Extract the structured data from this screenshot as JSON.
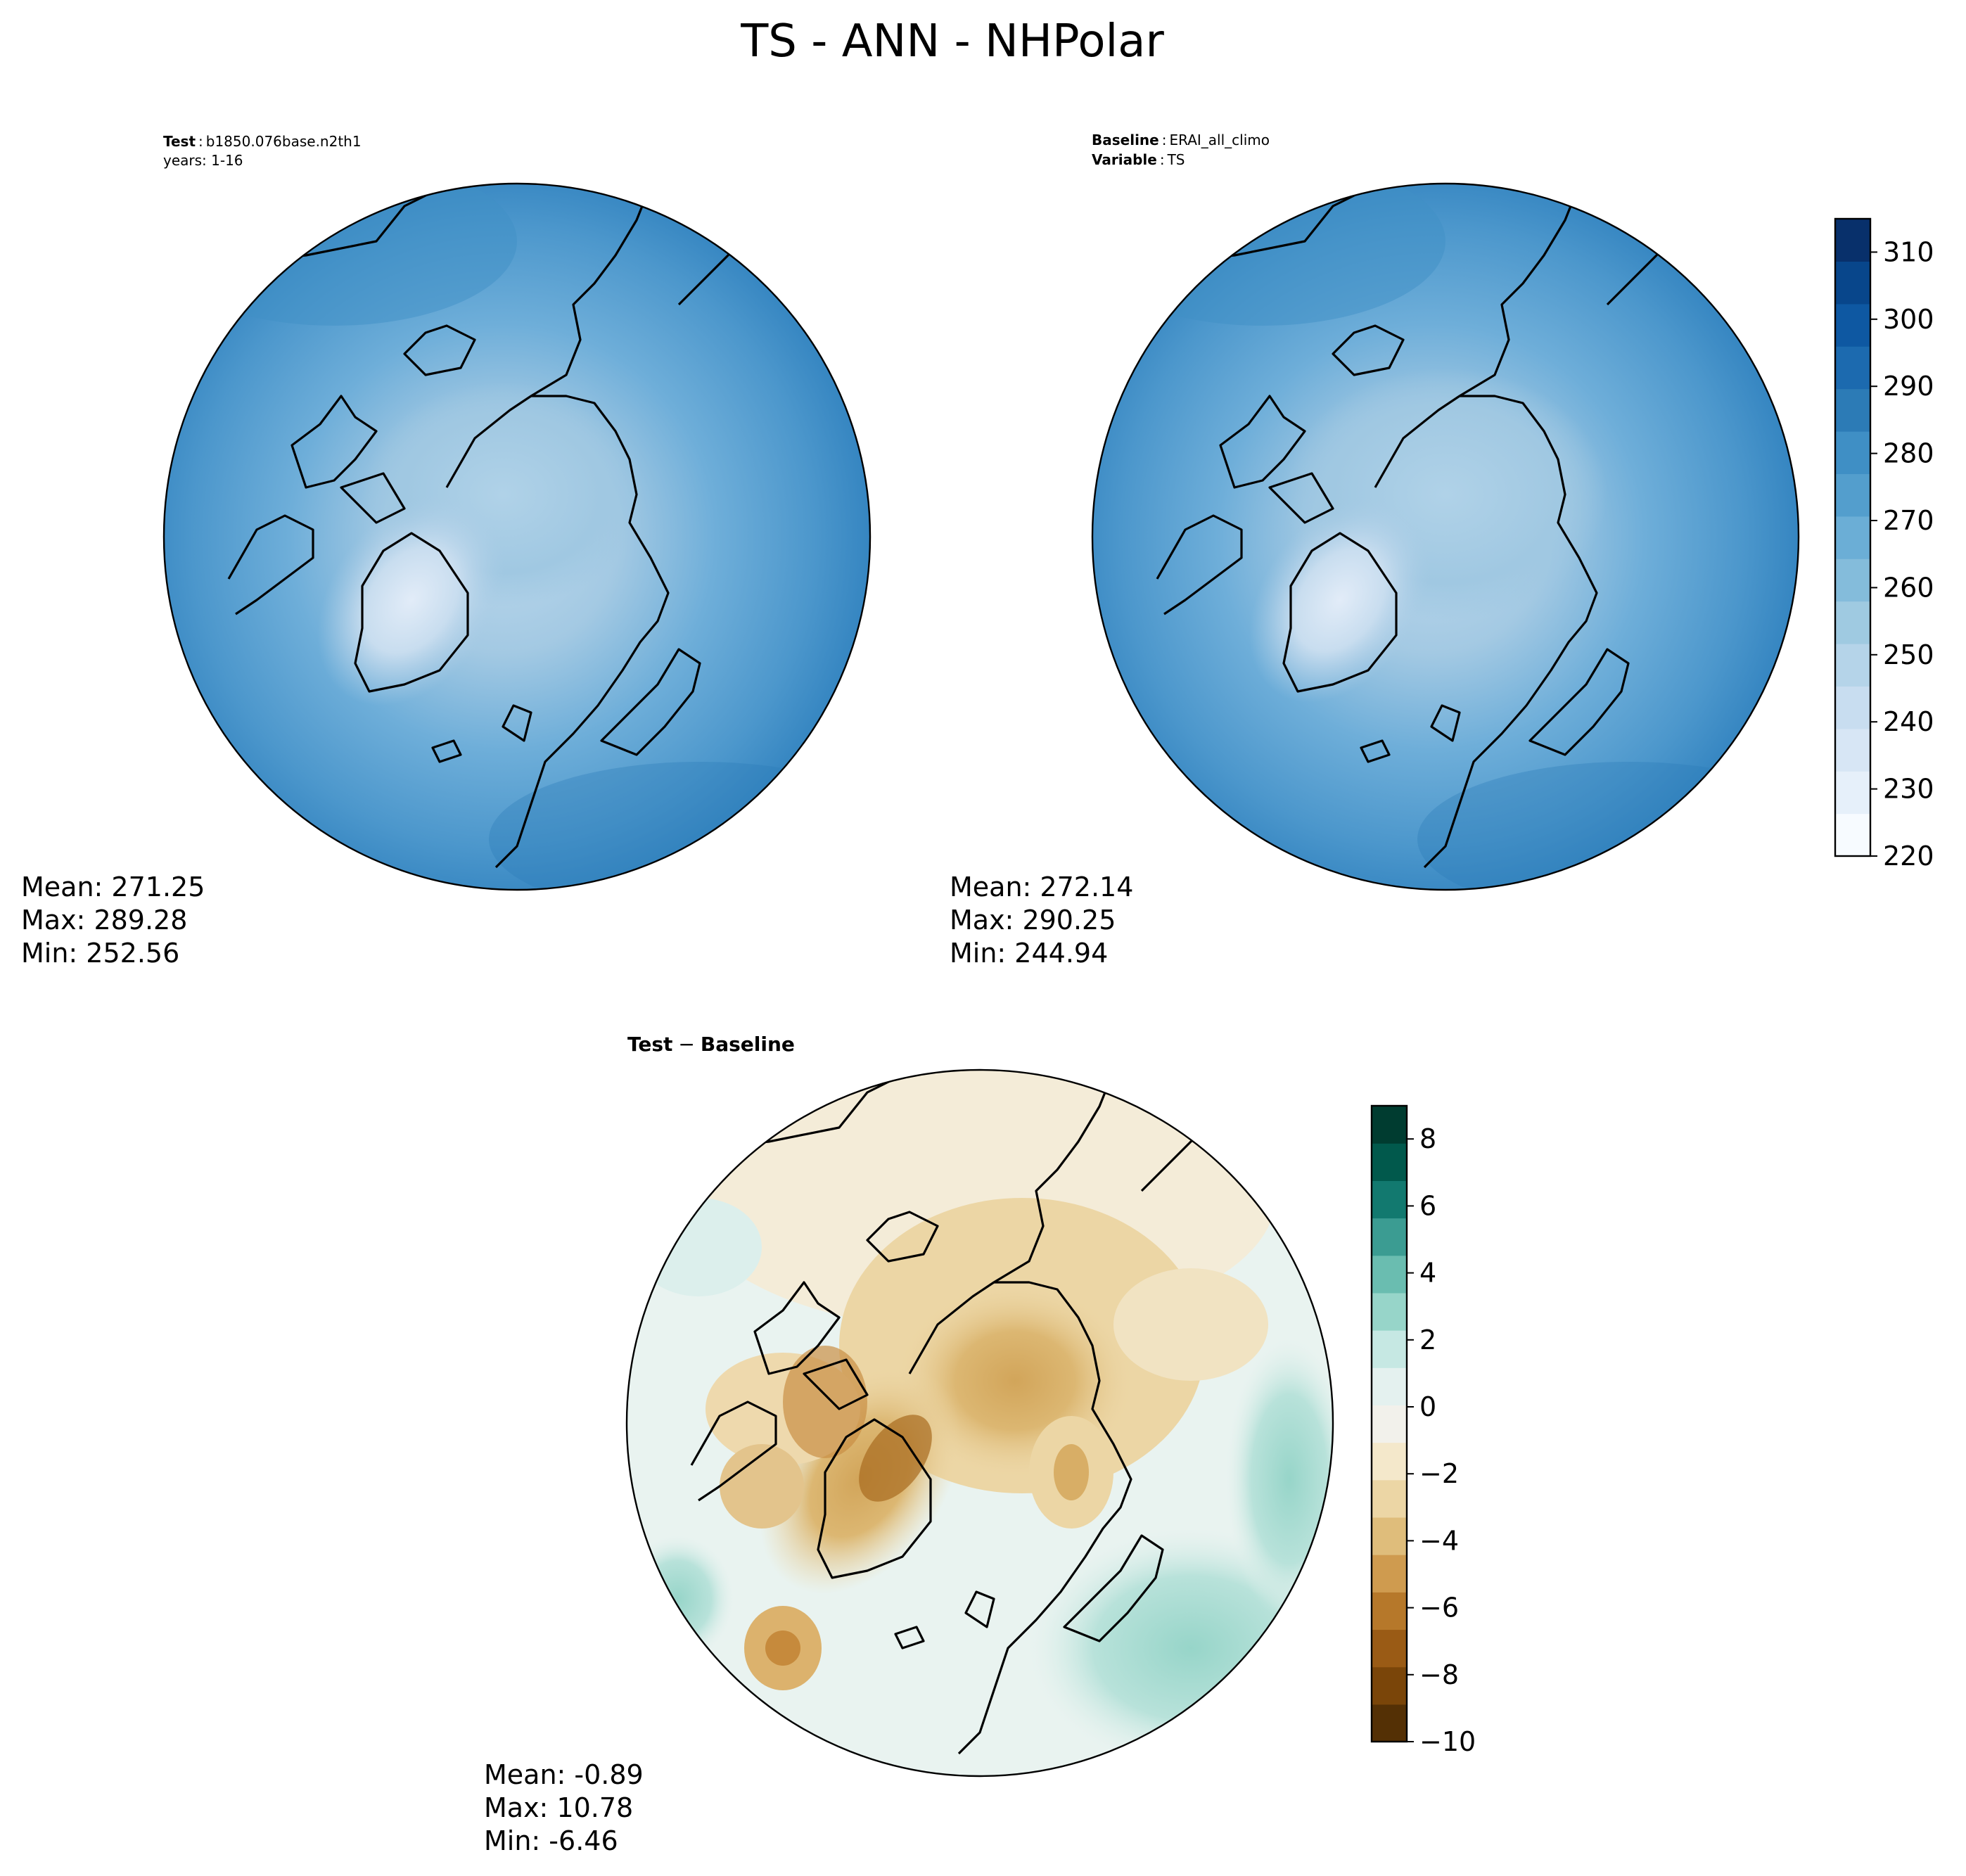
{
  "figure": {
    "title": "TS - ANN - NHPolar"
  },
  "panels": {
    "test": {
      "header": {
        "key1": "Test",
        "val1": "b1850.076base.n2th1",
        "line2": "years: 1-16"
      },
      "stats": {
        "mean": "Mean: 271.25",
        "max": "Max: 289.28",
        "min": "Min: 252.56"
      }
    },
    "baseline": {
      "header": {
        "key1": "Baseline",
        "val1": "ERAI_all_climo",
        "key2": "Variable",
        "val2": "TS"
      },
      "stats": {
        "mean": "Mean: 272.14",
        "max": "Max: 290.25",
        "min": "Min: 244.94"
      }
    },
    "diff": {
      "header": {
        "key1": "Test",
        "sep": "−",
        "key2": "Baseline"
      },
      "stats": {
        "mean": "Mean: -0.89",
        "max": "Max: 10.78",
        "min": "Min: -6.46"
      }
    }
  },
  "colorbars": {
    "abs": {
      "ticks": [
        "220",
        "230",
        "240",
        "250",
        "260",
        "270",
        "280",
        "290",
        "300",
        "310"
      ],
      "colormap": "Blues",
      "colors": [
        "#f7fbff",
        "#e6f0fa",
        "#d7e6f5",
        "#c8ddf0",
        "#b5d4e9",
        "#9fcae1",
        "#84bcdb",
        "#6baed6",
        "#539ecd",
        "#3f8fc5",
        "#2c7bb6",
        "#1c6aaf",
        "#0e58a2",
        "#08468b",
        "#08306b"
      ]
    },
    "diff": {
      "ticks": [
        "−10",
        "−8",
        "−6",
        "−4",
        "−2",
        "0",
        "2",
        "4",
        "6",
        "8"
      ],
      "colormap": "BrBG",
      "colors": [
        "#543005",
        "#7a4509",
        "#9a5b15",
        "#b6782a",
        "#cf9b4f",
        "#dfbd7b",
        "#ecd6a5",
        "#f4e8cb",
        "#f2f1eb",
        "#e4f1ef",
        "#c6e8e3",
        "#97d5c9",
        "#6abdb0",
        "#3b9c92",
        "#12796f",
        "#01594c",
        "#003c30"
      ]
    }
  },
  "chart_data": [
    {
      "type": "heatmap",
      "title": "Test: b1850.076base.n2th1 years: 1-16",
      "projection": "north-polar-stereographic",
      "variable": "TS",
      "colorbar_range": [
        220,
        315
      ],
      "stats": {
        "mean": 271.25,
        "max": 289.28,
        "min": 252.56
      }
    },
    {
      "type": "heatmap",
      "title": "Baseline: ERAI_all_climo Variable: TS",
      "projection": "north-polar-stereographic",
      "variable": "TS",
      "colorbar_range": [
        220,
        315
      ],
      "stats": {
        "mean": 272.14,
        "max": 290.25,
        "min": 244.94
      }
    },
    {
      "type": "heatmap",
      "title": "Test − Baseline",
      "projection": "north-polar-stereographic",
      "variable": "TS",
      "colorbar_range": [
        -10,
        9
      ],
      "stats": {
        "mean": -0.89,
        "max": 10.78,
        "min": -6.46
      }
    }
  ]
}
